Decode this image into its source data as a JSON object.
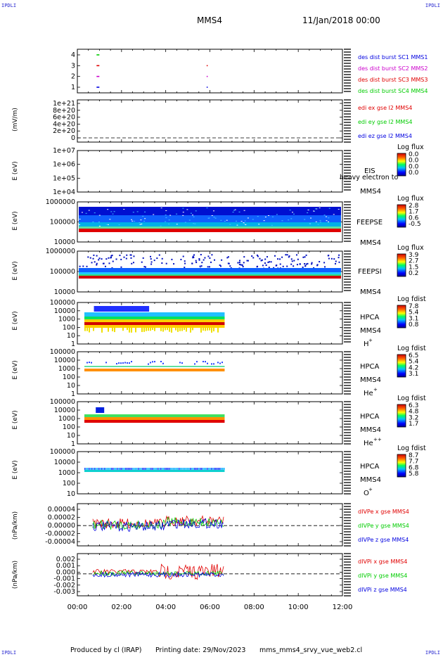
{
  "corners": {
    "tl": "IPDLI",
    "tr": "IPDLI",
    "bl": "IPDLI",
    "br": "IPDLI"
  },
  "header": {
    "spacecraft": "MMS4",
    "date": "11/Jan/2018 00:00"
  },
  "footer": {
    "produced": "Produced by cl (IRAP)",
    "printing": "Printing date: 29/Nov/2023",
    "file": "mms_mms4_srvy_vue_web2.cl"
  },
  "colors": {
    "red": "#e00000",
    "green": "#00cc00",
    "blue": "#0000e0",
    "magenta": "#cc00cc"
  },
  "chart_data": [
    {
      "type": "scatter",
      "name": "burst-indicator",
      "yticks": [
        "1",
        "2",
        "3",
        "4"
      ],
      "legend": [
        {
          "label": "des dist burst SC1 MMS1",
          "color": "#0000e0"
        },
        {
          "label": "des dist burst SC2 MMS2",
          "color": "#cc00cc"
        },
        {
          "label": "des dist burst SC3 MMS3",
          "color": "#e00000"
        },
        {
          "label": "des dist burst SC4 MMS4",
          "color": "#00cc00"
        }
      ],
      "points": [
        {
          "x": "00:56",
          "y": 4
        },
        {
          "x": "00:56",
          "y": 3
        },
        {
          "x": "00:56",
          "y": 2
        },
        {
          "x": "00:56",
          "y": 1
        },
        {
          "x": "05:55",
          "y": 3
        },
        {
          "x": "05:55",
          "y": 2
        },
        {
          "x": "05:55",
          "y": 1
        }
      ]
    },
    {
      "type": "line",
      "name": "edi-efield",
      "ylabel": "(mV/m)",
      "yticks": [
        "1e+21",
        "8e+20",
        "6e+20",
        "4e+20",
        "2e+20",
        "0"
      ],
      "legend": [
        {
          "label": "edi ex gse l2 MMS4",
          "color": "#e00000"
        },
        {
          "label": "edi ey gse l2 MMS4",
          "color": "#00cc00"
        },
        {
          "label": "edi ez gse l2 MMS4",
          "color": "#0000e0"
        }
      ]
    },
    {
      "type": "heatmap",
      "name": "eis",
      "ylabel": "E (eV)",
      "yticks": [
        "1e+07",
        "1e+06",
        "1e+05",
        "1e+04"
      ],
      "instrument": "EIS",
      "spacecraft": "MMS4",
      "overlay_text": "heavy electron to",
      "colorbar": {
        "title": "Log flux",
        "ticks": [
          "0.0",
          "0.0",
          "0.0",
          "0.0"
        ]
      }
    },
    {
      "type": "heatmap",
      "name": "feepse",
      "ylabel": "E (eV)",
      "yticks": [
        "1000000",
        "100000",
        "10000"
      ],
      "instrument": "FEEPSE",
      "spacecraft": "MMS4",
      "colorbar": {
        "title": "Log flux",
        "ticks": [
          "2.8",
          "1.7",
          "0.6",
          "-0.5"
        ]
      }
    },
    {
      "type": "heatmap",
      "name": "feepsi",
      "ylabel": "E (eV)",
      "yticks": [
        "1000000",
        "100000",
        "10000"
      ],
      "instrument": "FEEPSI",
      "spacecraft": "MMS4",
      "colorbar": {
        "title": "Log flux",
        "ticks": [
          "3.9",
          "2.7",
          "1.5",
          "0.2"
        ]
      }
    },
    {
      "type": "heatmap",
      "name": "hpca-h",
      "ylabel": "E (eV)",
      "yticks": [
        "100000",
        "10000",
        "1000",
        "100",
        "10",
        "1"
      ],
      "instrument": "HPCA",
      "spacecraft": "MMS4",
      "species": "H",
      "species_sup": "+",
      "colorbar": {
        "title": "Log fdist",
        "ticks": [
          "7.8",
          "5.4",
          "3.1",
          "0.8"
        ]
      }
    },
    {
      "type": "heatmap",
      "name": "hpca-he",
      "ylabel": "E (eV)",
      "yticks": [
        "100000",
        "10000",
        "1000",
        "100",
        "10",
        "1"
      ],
      "instrument": "HPCA",
      "spacecraft": "MMS4",
      "species": "He",
      "species_sup": "+",
      "colorbar": {
        "title": "Log fdist",
        "ticks": [
          "6.5",
          "5.4",
          "4.2",
          "3.1"
        ]
      }
    },
    {
      "type": "heatmap",
      "name": "hpca-hepp",
      "ylabel": "E (eV)",
      "yticks": [
        "100000",
        "10000",
        "1000",
        "100",
        "10",
        "1"
      ],
      "instrument": "HPCA",
      "spacecraft": "MMS4",
      "species": "He",
      "species_sup": "++",
      "colorbar": {
        "title": "Log fdist",
        "ticks": [
          "6.3",
          "4.8",
          "3.2",
          "1.7"
        ]
      }
    },
    {
      "type": "heatmap",
      "name": "hpca-o",
      "ylabel": "E (eV)",
      "yticks": [
        "100000",
        "10000",
        "1000",
        "100",
        "10"
      ],
      "instrument": "HPCA",
      "spacecraft": "MMS4",
      "species": "O",
      "species_sup": "+",
      "colorbar": {
        "title": "Log fdist",
        "ticks": [
          "8.7",
          "7.7",
          "6.8",
          "5.8"
        ]
      }
    },
    {
      "type": "line",
      "name": "divpe",
      "ylabel": "(nPa/km)",
      "yticks": [
        "0.00004",
        "0.00002",
        "0.00000",
        "-0.00002",
        "-0.00004"
      ],
      "legend": [
        {
          "label": "dIVPe x gse MMS4",
          "color": "#e00000"
        },
        {
          "label": "dIVPe y gse MMS4",
          "color": "#00cc00"
        },
        {
          "label": "dIVPe z gse MMS4",
          "color": "#0000e0"
        }
      ]
    },
    {
      "type": "line",
      "name": "divpi",
      "ylabel": "(nPa/km)",
      "yticks": [
        "0.002",
        "0.001",
        "0.000",
        "-0.001",
        "-0.002",
        "-0.003"
      ],
      "legend": [
        {
          "label": "dIVPi x gse MMS4",
          "color": "#e00000"
        },
        {
          "label": "dIVPi y gse MMS4",
          "color": "#00cc00"
        },
        {
          "label": "dIVPi z gse MMS4",
          "color": "#0000e0"
        }
      ]
    }
  ],
  "xaxis": {
    "ticks": [
      "00:00",
      "02:00",
      "04:00",
      "06:00",
      "08:00",
      "10:00",
      "12:00"
    ],
    "data_end": "06:40"
  }
}
